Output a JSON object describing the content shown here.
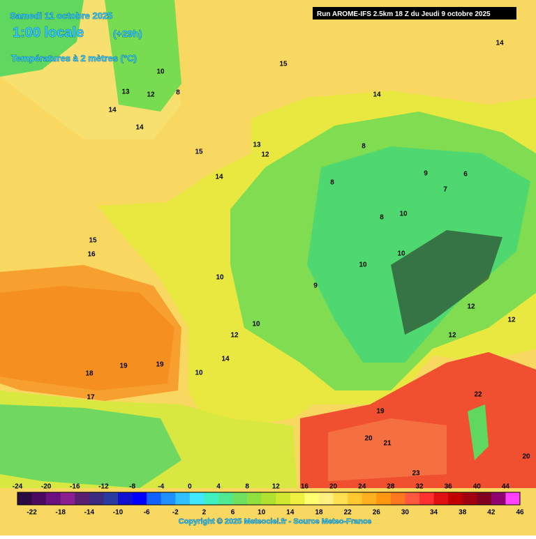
{
  "header": {
    "date": "Samedi 11 octobre 2025",
    "time": "1:00 locale",
    "lead": "(+29h)",
    "field": "Températures à 2 mètres (°C)",
    "run": "Run AROME-IFS 2.5km 18 Z du Jeudi 9 octobre 2025"
  },
  "map": {
    "labels": [
      15,
      14,
      14,
      10,
      12,
      8,
      13,
      14,
      14,
      15,
      13,
      12,
      14,
      15,
      16,
      18,
      19,
      19,
      17,
      8,
      8,
      8,
      9,
      6,
      7,
      10,
      10,
      10,
      9,
      10,
      10,
      12,
      14,
      10,
      12,
      12,
      12,
      22,
      20,
      21,
      23,
      20,
      19
    ]
  },
  "colorbar": {
    "colors": [
      "#2a0a40",
      "#4a0a60",
      "#6a1080",
      "#8a2090",
      "#5a2070",
      "#3a2a80",
      "#2a3aa0",
      "#1010d0",
      "#0000ff",
      "#1060ff",
      "#2090ff",
      "#30c0ff",
      "#40e8ff",
      "#40f0c0",
      "#50e890",
      "#70e060",
      "#90e040",
      "#b0e030",
      "#d0e830",
      "#f0f040",
      "#ffff70",
      "#fff080",
      "#ffe050",
      "#ffc830",
      "#ffb020",
      "#ff9810",
      "#ff7820",
      "#ff5840",
      "#ff3030",
      "#e01010",
      "#c00000",
      "#a00010",
      "#800020",
      "#900070",
      "#ff40ff"
    ],
    "range": [
      -24,
      46
    ],
    "top_labels": [
      -24,
      -20,
      -16,
      -12,
      -8,
      -4,
      0,
      4,
      8,
      12,
      16,
      20,
      24,
      28,
      32,
      36,
      40,
      44
    ],
    "bottom_labels": [
      -22,
      -18,
      -14,
      -10,
      -6,
      -2,
      2,
      6,
      10,
      14,
      18,
      22,
      26,
      30,
      34,
      38,
      42,
      46
    ]
  },
  "footer": {
    "copyright": "Copyright © 2025 Meteociel.fr - Source Meteo-France"
  }
}
